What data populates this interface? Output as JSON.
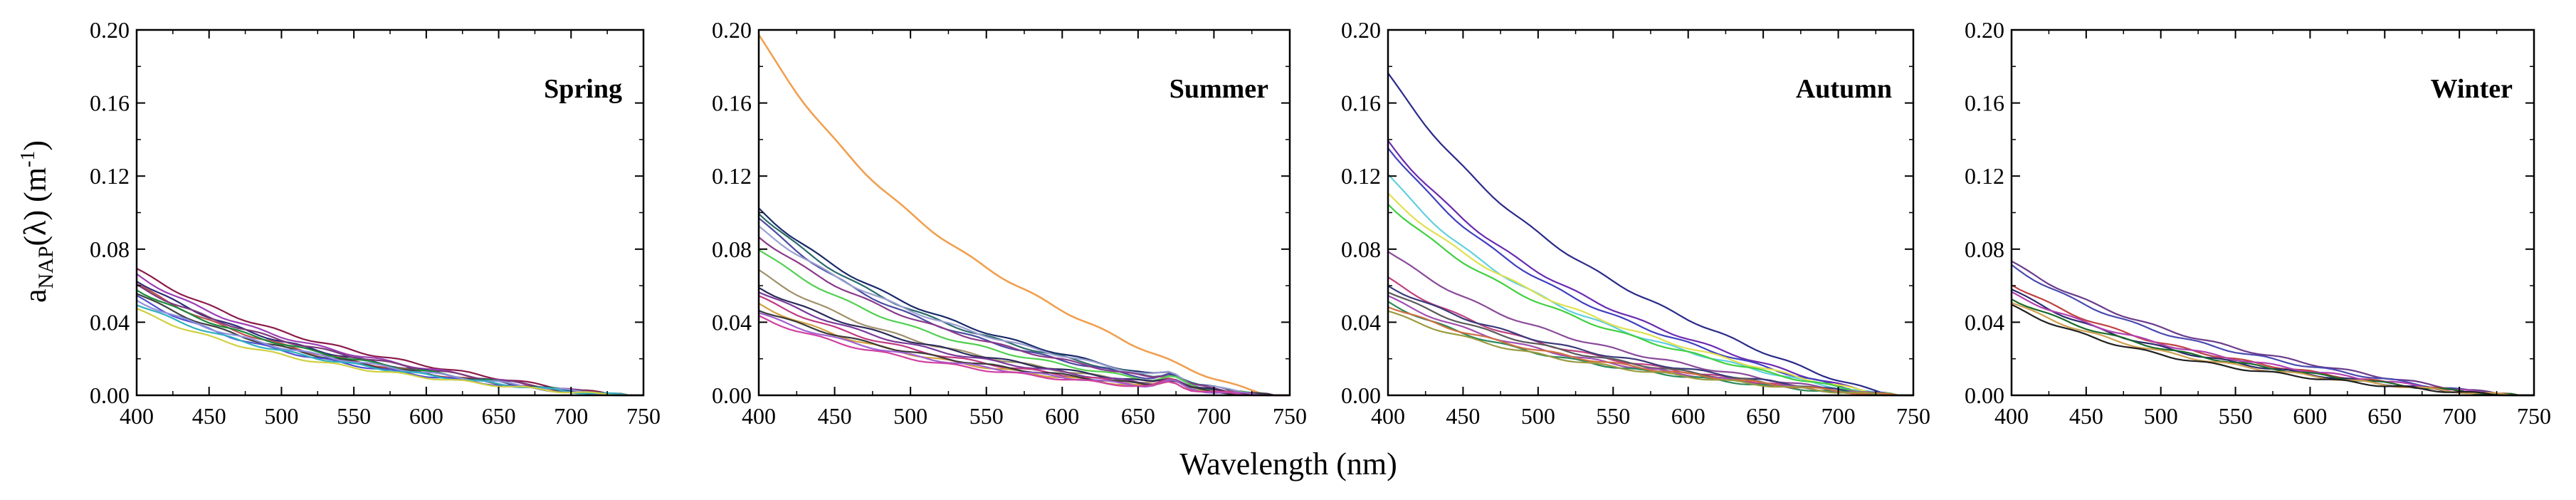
{
  "figure": {
    "ylabel_main": "a",
    "ylabel_sub": "NAP",
    "ylabel_mid": "(λ) (m",
    "ylabel_sup": "-1",
    "ylabel_end": ")",
    "xlabel": "Wavelength (nm)"
  },
  "chart_data": [
    {
      "type": "line",
      "title": "Spring",
      "xlim": [
        400,
        750
      ],
      "ylim": [
        0,
        0.2
      ],
      "xticks": [
        "400",
        "450",
        "500",
        "550",
        "600",
        "650",
        "700",
        "750"
      ],
      "yticks": [
        "0.00",
        "0.04",
        "0.08",
        "0.12",
        "0.16",
        "0.20"
      ],
      "series": [
        {
          "name": "s1",
          "color": "#8b1a4a",
          "a400": 0.069
        },
        {
          "name": "s2",
          "color": "#9a3fb5",
          "a400": 0.066
        },
        {
          "name": "s3",
          "color": "#2b2b7a",
          "a400": 0.063
        },
        {
          "name": "s4",
          "color": "#c05050",
          "a400": 0.061
        },
        {
          "name": "s5",
          "color": "#7a3a7a",
          "a400": 0.06
        },
        {
          "name": "s6",
          "color": "#1a8a3a",
          "a400": 0.058
        },
        {
          "name": "s7",
          "color": "#404040",
          "a400": 0.056
        },
        {
          "name": "s8",
          "color": "#5050d0",
          "a400": 0.054
        },
        {
          "name": "s9",
          "color": "#9090e0",
          "a400": 0.052
        },
        {
          "name": "s10",
          "color": "#30b0c0",
          "a400": 0.05
        },
        {
          "name": "s11",
          "color": "#d0d040",
          "a400": 0.047
        }
      ]
    },
    {
      "type": "line",
      "title": "Summer",
      "xlim": [
        400,
        750
      ],
      "ylim": [
        0,
        0.2
      ],
      "xticks": [
        "400",
        "450",
        "500",
        "550",
        "600",
        "650",
        "700",
        "750"
      ],
      "yticks": [
        "0.00",
        "0.04",
        "0.08",
        "0.12",
        "0.16",
        "0.20"
      ],
      "series": [
        {
          "name": "s1",
          "color": "#f0a050",
          "a400": 0.197
        },
        {
          "name": "s2",
          "color": "#1a2a6a",
          "a400": 0.102
        },
        {
          "name": "s3",
          "color": "#2a6a6a",
          "a400": 0.1
        },
        {
          "name": "s4",
          "color": "#4a4aa0",
          "a400": 0.097
        },
        {
          "name": "s5",
          "color": "#9aa0d0",
          "a400": 0.092
        },
        {
          "name": "s6",
          "color": "#8a3a8a",
          "a400": 0.087
        },
        {
          "name": "s7",
          "color": "#50d050",
          "a400": 0.08
        },
        {
          "name": "s8",
          "color": "#a0906a",
          "a400": 0.068
        },
        {
          "name": "s9",
          "color": "#2a2a5a",
          "a400": 0.059
        },
        {
          "name": "s10",
          "color": "#7a3a9a",
          "a400": 0.057
        },
        {
          "name": "s11",
          "color": "#c03a80",
          "a400": 0.054
        },
        {
          "name": "s12",
          "color": "#d0a040",
          "a400": 0.05
        },
        {
          "name": "s13",
          "color": "#3a3a3a",
          "a400": 0.047
        },
        {
          "name": "s14",
          "color": "#a060d0",
          "a400": 0.045
        },
        {
          "name": "s15",
          "color": "#d040a0",
          "a400": 0.043
        }
      ]
    },
    {
      "type": "line",
      "title": "Autumn",
      "xlim": [
        400,
        750
      ],
      "ylim": [
        0,
        0.2
      ],
      "xticks": [
        "400",
        "450",
        "500",
        "550",
        "600",
        "650",
        "700",
        "750"
      ],
      "yticks": [
        "0.00",
        "0.04",
        "0.08",
        "0.12",
        "0.16",
        "0.20"
      ],
      "series": [
        {
          "name": "s1",
          "color": "#2a2a8a",
          "a400": 0.176
        },
        {
          "name": "s2",
          "color": "#6a2ab0",
          "a400": 0.139
        },
        {
          "name": "s3",
          "color": "#4040c0",
          "a400": 0.136
        },
        {
          "name": "s4",
          "color": "#60d0e0",
          "a400": 0.121
        },
        {
          "name": "s5",
          "color": "#e0e050",
          "a400": 0.11
        },
        {
          "name": "s6",
          "color": "#40d040",
          "a400": 0.105
        },
        {
          "name": "s7",
          "color": "#8a4a9a",
          "a400": 0.079
        },
        {
          "name": "s8",
          "color": "#c04080",
          "a400": 0.064
        },
        {
          "name": "s9",
          "color": "#3a3a7a",
          "a400": 0.06
        },
        {
          "name": "s10",
          "color": "#5a5a5a",
          "a400": 0.057
        },
        {
          "name": "s11",
          "color": "#a050b0",
          "a400": 0.054
        },
        {
          "name": "s12",
          "color": "#2a8a5a",
          "a400": 0.051
        },
        {
          "name": "s13",
          "color": "#d07040",
          "a400": 0.049
        },
        {
          "name": "s14",
          "color": "#9a9a40",
          "a400": 0.046
        }
      ]
    },
    {
      "type": "line",
      "title": "Winter",
      "xlim": [
        400,
        750
      ],
      "ylim": [
        0,
        0.2
      ],
      "xticks": [
        "400",
        "450",
        "500",
        "550",
        "600",
        "650",
        "700",
        "750"
      ],
      "yticks": [
        "0.00",
        "0.04",
        "0.08",
        "0.12",
        "0.16",
        "0.20"
      ],
      "series": [
        {
          "name": "s1",
          "color": "#6a3a8a",
          "a400": 0.073
        },
        {
          "name": "s2",
          "color": "#4a4ab0",
          "a400": 0.071
        },
        {
          "name": "s3",
          "color": "#c04040",
          "a400": 0.061
        },
        {
          "name": "s4",
          "color": "#2a2a6a",
          "a400": 0.058
        },
        {
          "name": "s5",
          "color": "#b040b0",
          "a400": 0.056
        },
        {
          "name": "s6",
          "color": "#1a6a2a",
          "a400": 0.053
        },
        {
          "name": "s7",
          "color": "#d0a050",
          "a400": 0.051
        },
        {
          "name": "s8",
          "color": "#202020",
          "a400": 0.049
        }
      ]
    }
  ]
}
